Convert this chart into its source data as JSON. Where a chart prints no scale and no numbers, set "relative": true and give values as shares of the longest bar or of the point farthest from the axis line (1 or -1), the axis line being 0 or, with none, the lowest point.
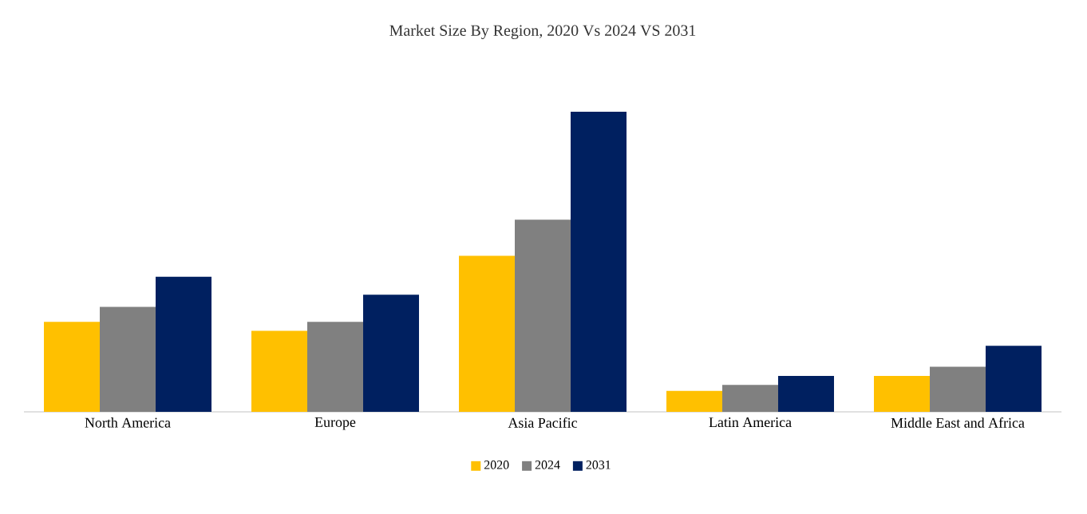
{
  "chart_data": {
    "type": "bar",
    "title": "Market Size By Region, 2020 Vs 2024 VS 2031",
    "relative": true,
    "categories": [
      "North America",
      "Europe",
      "Asia Pacific",
      "Latin America",
      "Middle East and Africa"
    ],
    "series": [
      {
        "name": "2020",
        "color": "#ffc000",
        "values": [
          0.3,
          0.27,
          0.52,
          0.07,
          0.12
        ]
      },
      {
        "name": "2024",
        "color": "#808080",
        "values": [
          0.35,
          0.3,
          0.64,
          0.09,
          0.15
        ]
      },
      {
        "name": "2031",
        "color": "#002060",
        "values": [
          0.45,
          0.39,
          1,
          0.12,
          0.22
        ]
      }
    ],
    "legend": "bottom"
  }
}
